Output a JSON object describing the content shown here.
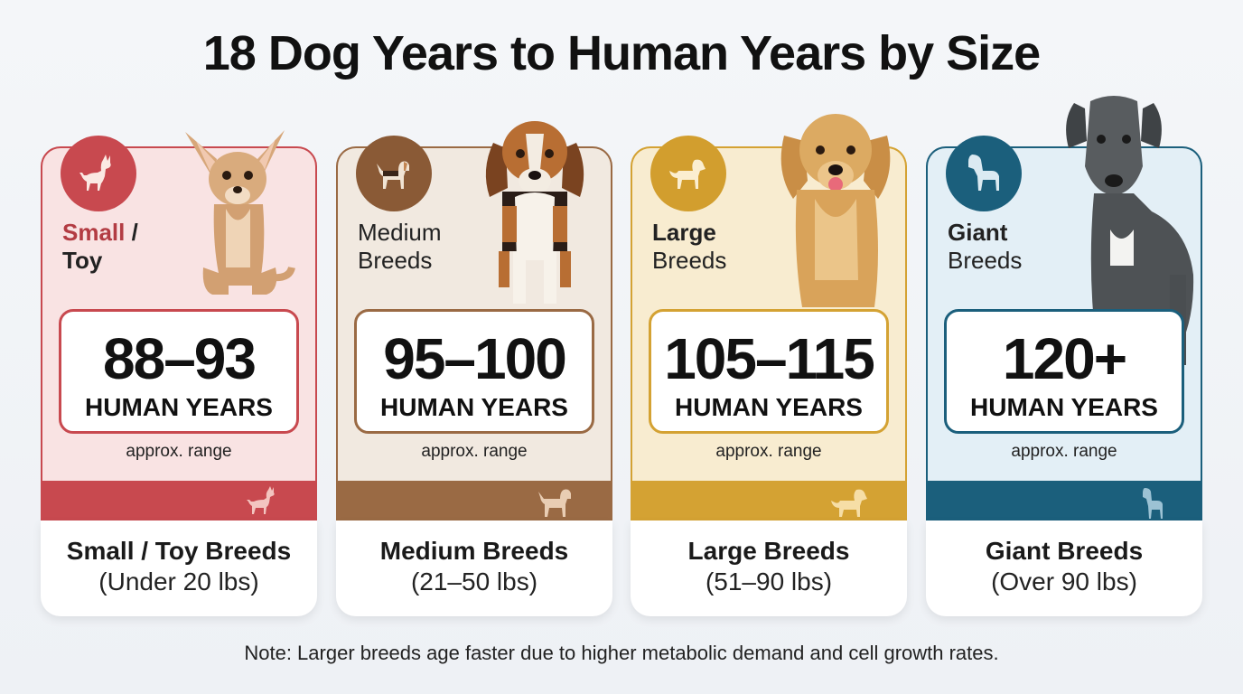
{
  "title": "18 Dog Years to Human Years by Size",
  "cards": [
    {
      "label_bold": "Small",
      "label_rest": " /",
      "label_line2": "Toy",
      "value": "88–93",
      "unit": "HUMAN YEARS",
      "approx": "approx. range",
      "breed_name": "Small / Toy Breeds",
      "breed_weight": "(Under 20 lbs)",
      "icon": "chihuahua-icon",
      "accent": "#c8494f",
      "bg": "#f9e3e3"
    },
    {
      "label_bold": "",
      "label_rest": "Medium",
      "label_line2": "Breeds",
      "value": "95–100",
      "unit": "HUMAN YEARS",
      "approx": "approx. range",
      "breed_name": "Medium Breeds",
      "breed_weight": "(21–50 lbs)",
      "icon": "beagle-icon",
      "accent": "#9a6a44",
      "bg": "#f1e9e0"
    },
    {
      "label_bold": "Large",
      "label_rest": "",
      "label_line2": "Breeds",
      "value": "105–115",
      "unit": "HUMAN YEARS",
      "approx": "approx. range",
      "breed_name": "Large Breeds",
      "breed_weight": "(51–90 lbs)",
      "icon": "retriever-icon",
      "accent": "#d4a233",
      "bg": "#f8ecd0"
    },
    {
      "label_bold": "Giant",
      "label_rest": "",
      "label_line2": "Breeds",
      "value": "120+",
      "unit": "HUMAN YEARS",
      "approx": "approx. range",
      "breed_name": "Giant Breeds",
      "breed_weight": "(Over 90 lbs)",
      "icon": "great-dane-icon",
      "accent": "#1b5f7c",
      "bg": "#e3eff6"
    }
  ],
  "note": "Note: Larger breeds age faster due to higher metabolic demand and cell growth rates."
}
